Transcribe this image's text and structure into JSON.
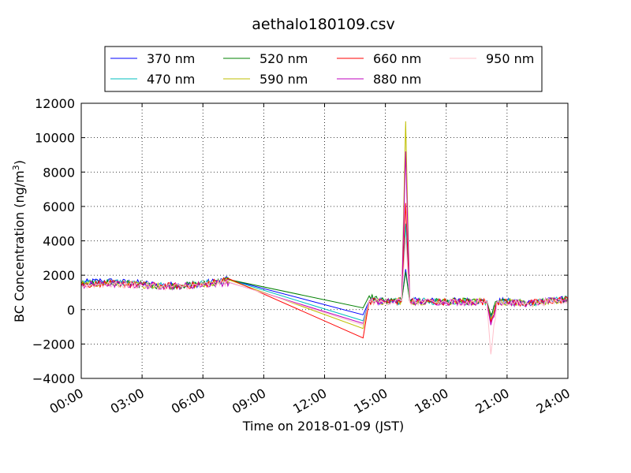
{
  "chart_data": {
    "type": "line",
    "title": "aethalo180109.csv",
    "xlabel": "Time on 2018-01-09 (JST)",
    "ylabel": "BC Concentration (ng/m³)",
    "ylabel_main": "BC Concentration (ng/m",
    "ylabel_sup": "3",
    "ylabel_end": ")",
    "xlim": [
      0,
      24
    ],
    "ylim": [
      -4000,
      12000
    ],
    "x_ticks": [
      "00:00",
      "03:00",
      "06:00",
      "09:00",
      "12:00",
      "15:00",
      "18:00",
      "21:00",
      "24:00"
    ],
    "y_ticks": [
      "−4000",
      "−2000",
      "0",
      "2000",
      "4000",
      "6000",
      "8000",
      "10000",
      "12000"
    ],
    "grid": true,
    "legend_position": "top-center, outside plot",
    "series": [
      {
        "name": "370 nm",
        "color": "#0000ff",
        "points": [
          [
            0,
            1550
          ],
          [
            1,
            1680
          ],
          [
            2,
            1600
          ],
          [
            3,
            1530
          ],
          [
            4,
            1420
          ],
          [
            5,
            1420
          ],
          [
            6,
            1520
          ],
          [
            7.3,
            1750
          ],
          [
            13.9,
            -300
          ],
          [
            14.2,
            500
          ],
          [
            15,
            480
          ],
          [
            15.8,
            500
          ],
          [
            16,
            2350
          ],
          [
            16.2,
            500
          ],
          [
            18,
            500
          ],
          [
            20,
            500
          ],
          [
            20.2,
            -400
          ],
          [
            20.5,
            500
          ],
          [
            22,
            400
          ],
          [
            24,
            600
          ]
        ]
      },
      {
        "name": "470 nm",
        "color": "#00bfbf",
        "points": [
          [
            0,
            1480
          ],
          [
            1,
            1600
          ],
          [
            2,
            1550
          ],
          [
            3,
            1490
          ],
          [
            4,
            1400
          ],
          [
            5,
            1420
          ],
          [
            6,
            1500
          ],
          [
            7.3,
            1740
          ],
          [
            13.9,
            -650
          ],
          [
            14.2,
            500
          ],
          [
            15,
            470
          ],
          [
            15.8,
            500
          ],
          [
            16,
            5000
          ],
          [
            16.2,
            480
          ],
          [
            18,
            480
          ],
          [
            20,
            470
          ],
          [
            20.2,
            -500
          ],
          [
            20.5,
            480
          ],
          [
            22,
            380
          ],
          [
            24,
            600
          ]
        ]
      },
      {
        "name": "520 nm",
        "color": "#008000",
        "points": [
          [
            0,
            1460
          ],
          [
            1,
            1560
          ],
          [
            2,
            1520
          ],
          [
            3,
            1470
          ],
          [
            4,
            1390
          ],
          [
            5,
            1400
          ],
          [
            6,
            1480
          ],
          [
            7.3,
            1740
          ],
          [
            13.9,
            100
          ],
          [
            14.2,
            800
          ],
          [
            15,
            470
          ],
          [
            15.8,
            500
          ],
          [
            16,
            2200
          ],
          [
            16.2,
            470
          ],
          [
            18,
            470
          ],
          [
            20,
            470
          ],
          [
            20.2,
            -300
          ],
          [
            20.5,
            470
          ],
          [
            22,
            380
          ],
          [
            24,
            600
          ]
        ]
      },
      {
        "name": "590 nm",
        "color": "#bfbf00",
        "points": [
          [
            0,
            1450
          ],
          [
            1,
            1550
          ],
          [
            2,
            1500
          ],
          [
            3,
            1450
          ],
          [
            4,
            1380
          ],
          [
            5,
            1390
          ],
          [
            6,
            1470
          ],
          [
            7.3,
            1720
          ],
          [
            13.9,
            -1100
          ],
          [
            14.2,
            500
          ],
          [
            15,
            460
          ],
          [
            15.8,
            500
          ],
          [
            16,
            10950
          ],
          [
            16.2,
            470
          ],
          [
            18,
            470
          ],
          [
            20,
            460
          ],
          [
            20.2,
            -600
          ],
          [
            20.5,
            460
          ],
          [
            22,
            370
          ],
          [
            24,
            600
          ]
        ]
      },
      {
        "name": "660 nm",
        "color": "#ff0000",
        "points": [
          [
            0,
            1420
          ],
          [
            1,
            1520
          ],
          [
            2,
            1480
          ],
          [
            3,
            1430
          ],
          [
            4,
            1370
          ],
          [
            5,
            1380
          ],
          [
            6,
            1460
          ],
          [
            7.3,
            1790
          ],
          [
            13.9,
            -1650
          ],
          [
            14.2,
            500
          ],
          [
            15,
            450
          ],
          [
            15.8,
            500
          ],
          [
            16,
            6200
          ],
          [
            16.2,
            460
          ],
          [
            18,
            460
          ],
          [
            20,
            450
          ],
          [
            20.2,
            -700
          ],
          [
            20.5,
            450
          ],
          [
            22,
            360
          ],
          [
            24,
            600
          ]
        ]
      },
      {
        "name": "880 nm",
        "color": "#bf00bf",
        "points": [
          [
            0,
            1400
          ],
          [
            1,
            1500
          ],
          [
            2,
            1460
          ],
          [
            3,
            1420
          ],
          [
            4,
            1360
          ],
          [
            5,
            1370
          ],
          [
            6,
            1450
          ],
          [
            7.3,
            1580
          ],
          [
            13.9,
            -800
          ],
          [
            14.2,
            500
          ],
          [
            15,
            440
          ],
          [
            15.8,
            500
          ],
          [
            16,
            9200
          ],
          [
            16.2,
            450
          ],
          [
            18,
            450
          ],
          [
            20,
            440
          ],
          [
            20.2,
            -900
          ],
          [
            20.5,
            440
          ],
          [
            22,
            350
          ],
          [
            24,
            580
          ]
        ]
      },
      {
        "name": "950 nm",
        "color": "#ffc0cb",
        "points": [
          [
            0,
            1380
          ],
          [
            1,
            1480
          ],
          [
            2,
            1440
          ],
          [
            3,
            1400
          ],
          [
            4,
            1350
          ],
          [
            5,
            1360
          ],
          [
            6,
            1440
          ],
          [
            7.3,
            1600
          ],
          [
            13.9,
            -900
          ],
          [
            14.2,
            500
          ],
          [
            15,
            430
          ],
          [
            15.8,
            500
          ],
          [
            16,
            4200
          ],
          [
            16.2,
            440
          ],
          [
            18,
            440
          ],
          [
            20,
            430
          ],
          [
            20.2,
            -2600
          ],
          [
            20.5,
            430
          ],
          [
            22,
            340
          ],
          [
            24,
            560
          ]
        ]
      }
    ]
  }
}
